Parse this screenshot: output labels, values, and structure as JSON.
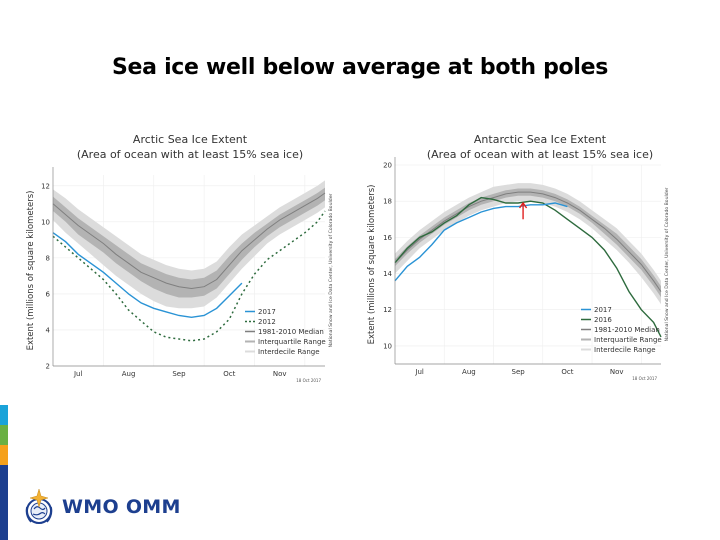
{
  "slide": {
    "title": "Sea ice well below average at both poles",
    "logo_text": "WMO OMM",
    "stripe_colors": [
      "#1aa3d9",
      "#6ab043",
      "#f5a11c",
      "#1d3f8f"
    ]
  },
  "chart_data": [
    {
      "type": "line",
      "title": "Arctic Sea Ice Extent",
      "subtitle": "(Area of ocean with at least 15% sea ice)",
      "ylabel": "Extent (millions of square kilometers)",
      "xlabel": "",
      "ylim": [
        2,
        12.6
      ],
      "yticks": [
        2,
        4,
        6,
        8,
        10,
        12
      ],
      "xlim": [
        0,
        5.4
      ],
      "xticks": [
        {
          "label": "Jul",
          "x": 0.5
        },
        {
          "label": "Aug",
          "x": 1.5
        },
        {
          "label": "Sep",
          "x": 2.5
        },
        {
          "label": "Oct",
          "x": 3.5
        },
        {
          "label": "Nov",
          "x": 4.5
        }
      ],
      "xgrid": [
        1,
        2,
        3,
        4,
        5
      ],
      "date_stamp": "18 Oct 2017",
      "credit": "National Snow and Ice Data Center, University of Colorado Boulder",
      "legend_position": "bottom-right",
      "legend": [
        "2017",
        "2012",
        "1981-2010 Median",
        "Interquartile Range",
        "Interdecile Range"
      ],
      "x": [
        0,
        0.25,
        0.5,
        0.75,
        1.0,
        1.25,
        1.5,
        1.75,
        2.0,
        2.25,
        2.5,
        2.75,
        3.0,
        3.25,
        3.5,
        3.75,
        4.0,
        4.25,
        4.5,
        4.75,
        5.0,
        5.25,
        5.4
      ],
      "series": [
        {
          "name": "1981-2010 Median",
          "color": "#7f7f7f",
          "style": "solid",
          "values": [
            11.0,
            10.4,
            9.8,
            9.3,
            8.8,
            8.2,
            7.7,
            7.2,
            6.9,
            6.6,
            6.4,
            6.3,
            6.4,
            6.8,
            7.6,
            8.4,
            9.0,
            9.6,
            10.1,
            10.5,
            10.9,
            11.3,
            11.6
          ]
        },
        {
          "name": "Interquartile Range",
          "color": "#b3b3b3",
          "band": true,
          "lower": [
            10.6,
            10.0,
            9.3,
            8.8,
            8.3,
            7.7,
            7.2,
            6.7,
            6.3,
            6.0,
            5.8,
            5.8,
            5.9,
            6.3,
            7.1,
            7.9,
            8.6,
            9.2,
            9.7,
            10.1,
            10.5,
            10.9,
            11.2
          ],
          "upper": [
            11.4,
            10.8,
            10.2,
            9.7,
            9.2,
            8.7,
            8.2,
            7.7,
            7.4,
            7.1,
            6.9,
            6.8,
            6.9,
            7.3,
            8.1,
            8.8,
            9.4,
            9.9,
            10.4,
            10.8,
            11.2,
            11.6,
            11.9
          ]
        },
        {
          "name": "Interdecile Range",
          "color": "#dcdcdc",
          "band": true,
          "lower": [
            10.1,
            9.4,
            8.8,
            8.2,
            7.6,
            7.0,
            6.5,
            6.0,
            5.6,
            5.3,
            5.2,
            5.2,
            5.3,
            5.8,
            6.6,
            7.4,
            8.1,
            8.8,
            9.3,
            9.7,
            10.1,
            10.5,
            10.8
          ],
          "upper": [
            11.8,
            11.3,
            10.7,
            10.2,
            9.7,
            9.2,
            8.7,
            8.2,
            7.9,
            7.6,
            7.4,
            7.3,
            7.4,
            7.8,
            8.6,
            9.3,
            9.8,
            10.3,
            10.8,
            11.2,
            11.6,
            12.0,
            12.3
          ]
        },
        {
          "name": "2017",
          "color": "#2a93d5",
          "style": "solid",
          "values": [
            9.4,
            8.9,
            8.2,
            7.7,
            7.2,
            6.6,
            6.0,
            5.5,
            5.2,
            5.0,
            4.8,
            4.7,
            4.8,
            5.2,
            5.9,
            6.6,
            null,
            null,
            null,
            null,
            null,
            null,
            null
          ]
        },
        {
          "name": "2012",
          "color": "#2e6b3e",
          "style": "dashed",
          "values": [
            9.2,
            8.6,
            8.0,
            7.4,
            6.8,
            6.0,
            5.1,
            4.5,
            3.9,
            3.6,
            3.5,
            3.4,
            3.5,
            3.9,
            4.6,
            6.0,
            7.1,
            7.9,
            8.4,
            8.9,
            9.4,
            10.0,
            10.6
          ]
        }
      ]
    },
    {
      "type": "line",
      "title": "Antarctic Sea Ice Extent",
      "subtitle": "(Area of ocean with at least 15% sea ice)",
      "ylabel": "Extent (millions of square kilometers)",
      "xlabel": "",
      "ylim": [
        9,
        20
      ],
      "yticks": [
        10,
        12,
        14,
        16,
        18,
        20
      ],
      "xlim": [
        0,
        5.4
      ],
      "xticks": [
        {
          "label": "Jul",
          "x": 0.5
        },
        {
          "label": "Aug",
          "x": 1.5
        },
        {
          "label": "Sep",
          "x": 2.5
        },
        {
          "label": "Oct",
          "x": 3.5
        },
        {
          "label": "Nov",
          "x": 4.5
        }
      ],
      "xgrid": [
        1,
        2,
        3,
        4,
        5
      ],
      "date_stamp": "18 Oct 2017",
      "credit": "National Snow and Ice Data Center, University of Colorado Boulder",
      "legend_position": "bottom-right",
      "legend": [
        "2017",
        "2016",
        "1981-2010 Median",
        "Interquartile Range",
        "Interdecile Range"
      ],
      "annotation": {
        "type": "red-arrow",
        "x": 2.6,
        "y_from": 17.0,
        "y_to": 17.9,
        "color": "#e02020"
      },
      "x": [
        0,
        0.25,
        0.5,
        0.75,
        1.0,
        1.25,
        1.5,
        1.75,
        2.0,
        2.25,
        2.5,
        2.75,
        3.0,
        3.25,
        3.5,
        3.75,
        4.0,
        4.25,
        4.5,
        4.75,
        5.0,
        5.25,
        5.4
      ],
      "series": [
        {
          "name": "1981-2010 Median",
          "color": "#7f7f7f",
          "style": "solid",
          "values": [
            14.6,
            15.3,
            15.9,
            16.4,
            16.9,
            17.3,
            17.7,
            18.0,
            18.2,
            18.4,
            18.5,
            18.5,
            18.4,
            18.2,
            17.9,
            17.5,
            17.0,
            16.5,
            15.9,
            15.2,
            14.5,
            13.6,
            13.0
          ]
        },
        {
          "name": "Interquartile Range",
          "color": "#b3b3b3",
          "band": true,
          "lower": [
            14.4,
            15.1,
            15.7,
            16.2,
            16.7,
            17.1,
            17.5,
            17.8,
            18.0,
            18.2,
            18.3,
            18.3,
            18.2,
            18.0,
            17.7,
            17.3,
            16.8,
            16.2,
            15.6,
            14.9,
            14.2,
            13.3,
            12.7
          ],
          "upper": [
            14.8,
            15.5,
            16.1,
            16.6,
            17.1,
            17.5,
            17.9,
            18.2,
            18.4,
            18.6,
            18.7,
            18.7,
            18.6,
            18.4,
            18.1,
            17.7,
            17.2,
            16.7,
            16.2,
            15.5,
            14.8,
            13.9,
            13.3
          ]
        },
        {
          "name": "Interdecile Range",
          "color": "#dcdcdc",
          "band": true,
          "lower": [
            14.0,
            14.7,
            15.4,
            15.9,
            16.4,
            16.8,
            17.2,
            17.5,
            17.7,
            17.9,
            18.0,
            18.0,
            17.9,
            17.7,
            17.4,
            17.0,
            16.5,
            15.9,
            15.3,
            14.6,
            13.8,
            12.9,
            12.3
          ],
          "upper": [
            15.1,
            15.8,
            16.4,
            16.9,
            17.4,
            17.8,
            18.2,
            18.5,
            18.8,
            18.9,
            19.0,
            19.0,
            18.9,
            18.7,
            18.4,
            18.0,
            17.5,
            17.0,
            16.5,
            15.8,
            15.1,
            14.2,
            13.6
          ]
        },
        {
          "name": "2016",
          "color": "#2e6b3e",
          "style": "solid",
          "values": [
            14.6,
            15.4,
            16.0,
            16.3,
            16.8,
            17.2,
            17.8,
            18.2,
            18.1,
            17.9,
            17.9,
            18.0,
            17.9,
            17.5,
            17.0,
            16.5,
            16.0,
            15.3,
            14.3,
            13.0,
            12.0,
            11.3,
            10.5
          ]
        },
        {
          "name": "2017",
          "color": "#2a93d5",
          "style": "solid",
          "values": [
            13.6,
            14.4,
            14.9,
            15.6,
            16.4,
            16.8,
            17.1,
            17.4,
            17.6,
            17.7,
            17.7,
            17.8,
            17.8,
            17.9,
            17.7,
            null,
            null,
            null,
            null,
            null,
            null,
            null,
            null
          ]
        }
      ]
    }
  ]
}
